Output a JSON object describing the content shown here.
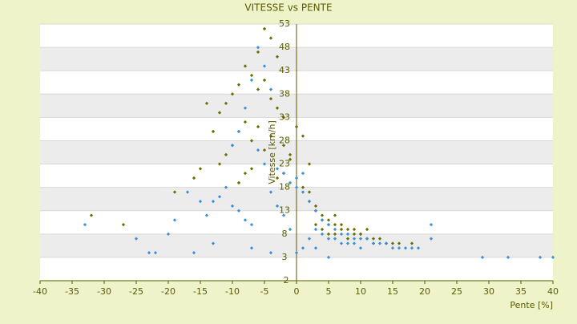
{
  "chart_data": {
    "type": "scatter",
    "title": "VITESSE vs PENTE",
    "x_label": "Pente [%]",
    "y_label": "Vitesse [km/h]",
    "xlim": [
      -40,
      40
    ],
    "xticks": [
      -40,
      -35,
      -30,
      -25,
      -20,
      -15,
      -10,
      -5,
      0,
      5,
      10,
      15,
      20,
      25,
      30,
      35,
      40
    ],
    "ylim": [
      -2,
      53
    ],
    "yticks": [
      -2,
      3,
      8,
      13,
      18,
      23,
      28,
      33,
      38,
      43,
      48,
      53
    ],
    "banded_grid": true,
    "series": [
      {
        "color": "#6b6b00",
        "x": [
          -5,
          -4,
          -6,
          -3,
          -8,
          -7,
          -9,
          -10,
          -11,
          -12,
          -6,
          -5,
          -4,
          -3,
          -2,
          -8,
          -9,
          -7,
          -10,
          -13,
          -14,
          -11,
          -12,
          -6,
          -5,
          -4,
          -7,
          -8,
          -2,
          -1,
          0,
          1,
          -15,
          -16,
          -19,
          -32,
          -27,
          -9,
          -3,
          2,
          3,
          4,
          5,
          6,
          7,
          8,
          9,
          10,
          11,
          12,
          13,
          14,
          15,
          3,
          4,
          5,
          6,
          8,
          10,
          12,
          14,
          1,
          2,
          3,
          6,
          7,
          9,
          11,
          -1,
          -2,
          2,
          16,
          18,
          4,
          5
        ],
        "values": [
          52,
          50,
          47,
          46,
          44,
          42,
          40,
          38,
          36,
          34,
          39,
          41,
          37,
          35,
          33,
          32,
          30,
          28,
          27,
          30,
          36,
          25,
          23,
          31,
          26,
          29,
          22,
          21,
          27,
          24,
          31,
          29,
          22,
          20,
          17,
          12,
          10,
          19,
          20,
          15,
          14,
          12,
          11,
          10,
          9,
          9,
          8,
          8,
          7,
          7,
          7,
          6,
          6,
          10,
          9,
          8,
          8,
          7,
          8,
          6,
          6,
          18,
          17,
          13,
          12,
          10,
          9,
          9,
          25,
          21,
          23,
          6,
          6,
          11,
          10
        ]
      },
      {
        "color": "#3a8fd8",
        "x": [
          -6,
          -5,
          -7,
          -4,
          -8,
          -9,
          -10,
          -6,
          -5,
          -3,
          -2,
          -1,
          -11,
          -12,
          -13,
          -14,
          -10,
          -9,
          -8,
          -7,
          -4,
          -3,
          -2,
          -1,
          0,
          1,
          0,
          1,
          2,
          3,
          4,
          5,
          6,
          7,
          8,
          9,
          10,
          11,
          12,
          13,
          14,
          15,
          16,
          17,
          18,
          3,
          4,
          5,
          6,
          7,
          8,
          9,
          10,
          2,
          1,
          0,
          -15,
          -17,
          -20,
          -22,
          -25,
          -33,
          -23,
          -19,
          -16,
          -13,
          -7,
          -4,
          19,
          21,
          29,
          33,
          38,
          40,
          21,
          5,
          3
        ],
        "values": [
          48,
          44,
          41,
          39,
          35,
          30,
          27,
          26,
          23,
          22,
          21,
          19,
          18,
          16,
          15,
          12,
          14,
          13,
          11,
          10,
          17,
          14,
          12,
          9,
          20,
          21,
          18,
          17,
          15,
          13,
          11,
          10,
          9,
          8,
          8,
          7,
          7,
          7,
          6,
          6,
          6,
          5,
          5,
          5,
          5,
          9,
          8,
          7,
          7,
          6,
          6,
          6,
          5,
          7,
          5,
          4,
          15,
          17,
          8,
          4,
          7,
          10,
          4,
          11,
          4,
          6,
          5,
          4,
          5,
          10,
          3,
          3,
          3,
          3,
          7,
          3,
          5
        ]
      }
    ]
  }
}
